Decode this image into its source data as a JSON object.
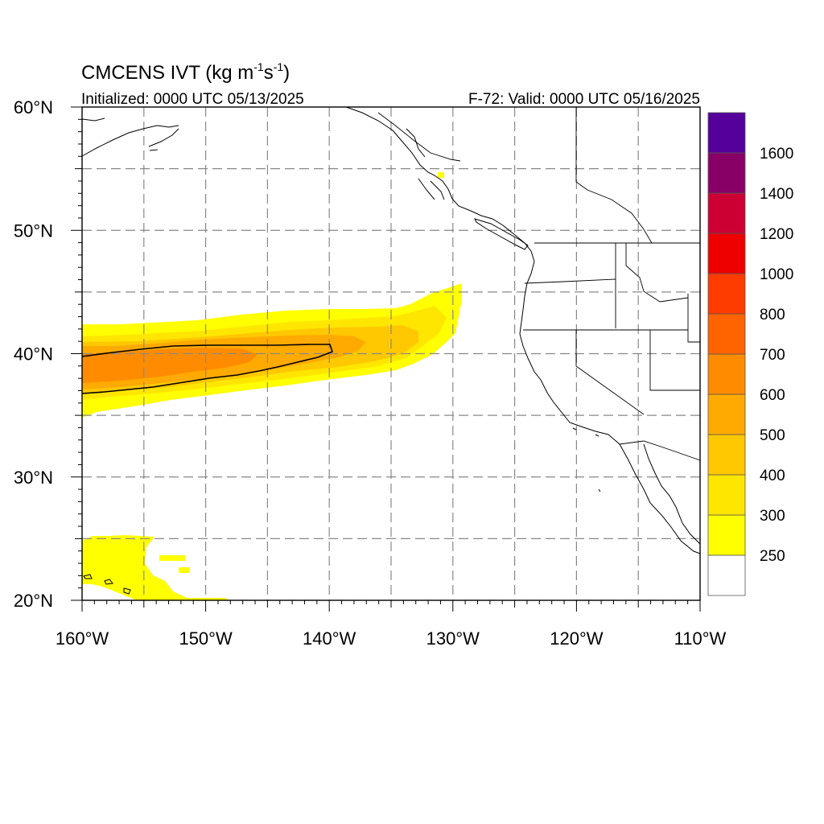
{
  "title": {
    "main": "CMCENS IVT (kg m",
    "sup1": "-1",
    "mid": "s",
    "sup2": "-1",
    "close": ")",
    "init": "Initialized: 0000 UTC 05/13/2025",
    "valid": "F-72: Valid: 0000 UTC 05/16/2025"
  },
  "map": {
    "lon_range": [
      -160,
      -110
    ],
    "lat_range": [
      20,
      60
    ],
    "lon_ticks": [
      {
        "v": -160,
        "label": "160°W"
      },
      {
        "v": -150,
        "label": "150°W"
      },
      {
        "v": -140,
        "label": "140°W"
      },
      {
        "v": -130,
        "label": "130°W"
      },
      {
        "v": -120,
        "label": "120°W"
      },
      {
        "v": -110,
        "label": "110°W"
      }
    ],
    "lat_ticks": [
      {
        "v": 60,
        "label": "60°N"
      },
      {
        "v": 50,
        "label": "50°N"
      },
      {
        "v": 40,
        "label": "40°N"
      },
      {
        "v": 30,
        "label": "30°N"
      },
      {
        "v": 20,
        "label": "20°N"
      }
    ],
    "gridlines": "dashed every 5 degrees",
    "field": "IVT shaded",
    "contour": "black line around 500 kg m-1 s-1 region"
  },
  "colorbar": {
    "labels": [
      "1600",
      "1400",
      "1200",
      "1000",
      "800",
      "700",
      "600",
      "500",
      "400",
      "300",
      "250"
    ],
    "colors": [
      "#ffffff",
      "#ffff00",
      "#ffe600",
      "#ffc800",
      "#ffaa00",
      "#ff8c00",
      "#ff6400",
      "#ff3c00",
      "#ee0000",
      "#cc0033",
      "#880066",
      "#55009a"
    ]
  }
}
